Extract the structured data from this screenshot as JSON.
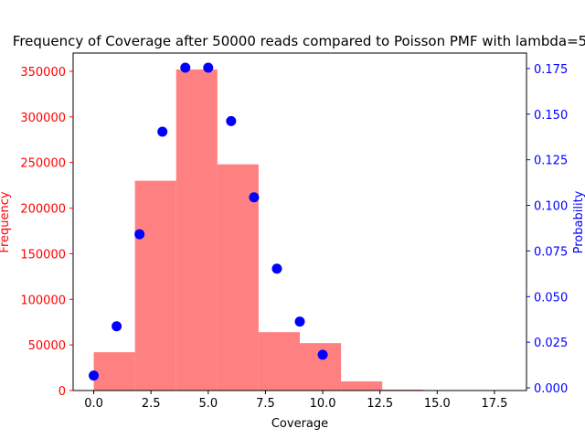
{
  "chart_data": {
    "type": "bar",
    "title": "Frequency of Coverage after 50000 reads compared to Poisson PMF with lambda=5",
    "xlabel": "Coverage",
    "ylabel_left": "Frequency",
    "ylabel_right": "Probability",
    "xlim": [
      -0.9,
      18.9
    ],
    "ylim_left": [
      0,
      370000
    ],
    "ylim_right": [
      -0.0015,
      0.1835
    ],
    "x_ticks": [
      0,
      2.5,
      5,
      7.5,
      10,
      12.5,
      15,
      17.5
    ],
    "x_tick_labels": [
      "0.0",
      "2.5",
      "5.0",
      "7.5",
      "10.0",
      "12.5",
      "15.0",
      "17.5"
    ],
    "y_left_ticks": [
      0,
      50000,
      100000,
      150000,
      200000,
      250000,
      300000,
      350000
    ],
    "y_left_tick_labels": [
      "0",
      "50000",
      "100000",
      "150000",
      "200000",
      "250000",
      "300000",
      "350000"
    ],
    "y_right_ticks": [
      0.0,
      0.025,
      0.05,
      0.075,
      0.1,
      0.125,
      0.15,
      0.175
    ],
    "y_right_tick_labels": [
      "0.000",
      "0.025",
      "0.050",
      "0.075",
      "0.100",
      "0.125",
      "0.150",
      "0.175"
    ],
    "histogram": {
      "bin_edges": [
        0,
        1.8,
        3.6,
        5.4,
        7.2,
        9.0,
        10.8,
        12.6,
        14.4,
        16.2,
        18.0
      ],
      "values": [
        42000,
        230000,
        352000,
        248000,
        64000,
        52000,
        10000,
        1000,
        0,
        0
      ],
      "color": "#ff8080"
    },
    "poisson_pmf": {
      "x": [
        0,
        1,
        2,
        3,
        4,
        5,
        6,
        7,
        8,
        9,
        10
      ],
      "y": [
        0.0067,
        0.0337,
        0.0842,
        0.1404,
        0.1755,
        0.1755,
        0.1462,
        0.1044,
        0.0653,
        0.0363,
        0.0181
      ],
      "color": "#0000ff"
    },
    "left_axis_color": "#ff0000",
    "right_axis_color": "#0000ff",
    "grid": false
  }
}
